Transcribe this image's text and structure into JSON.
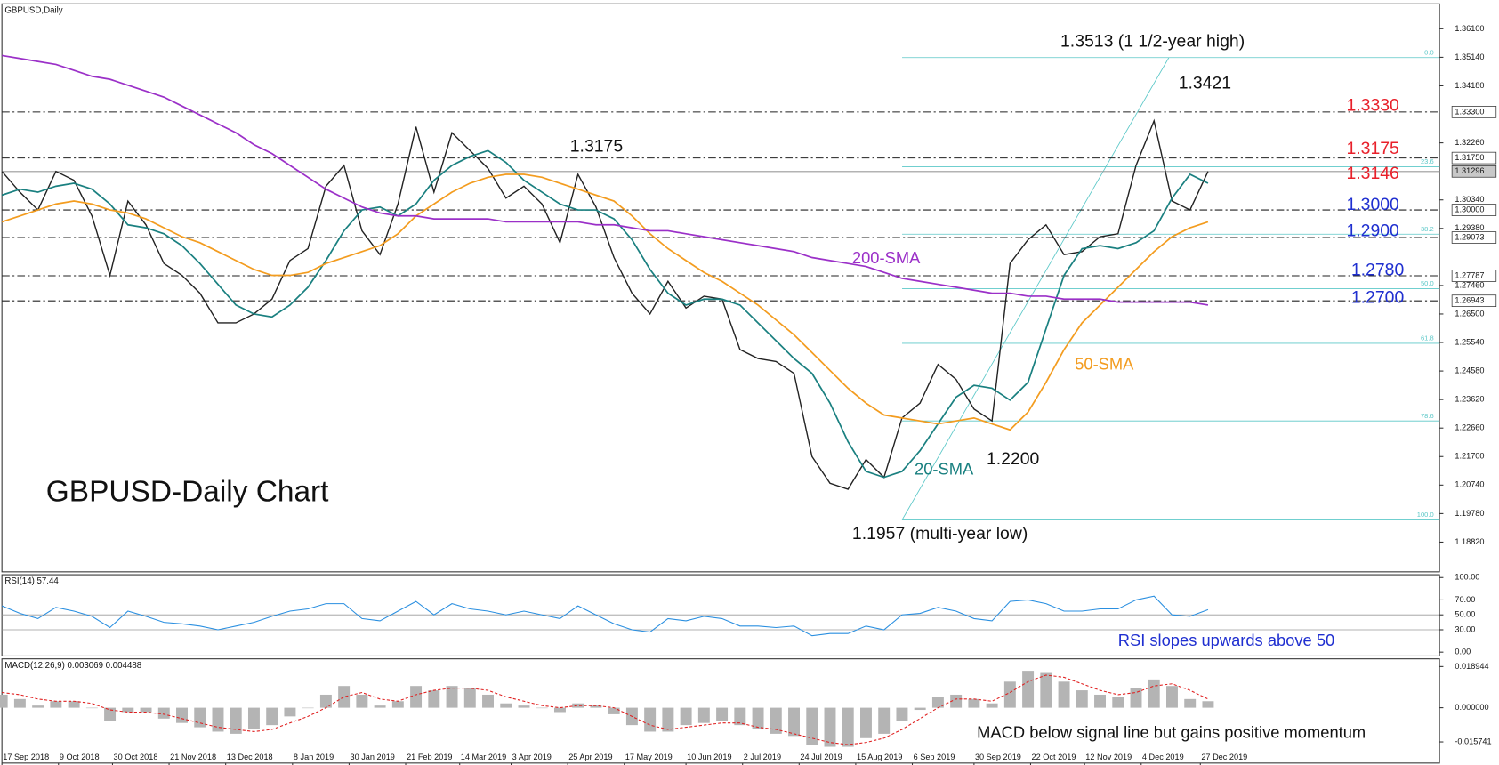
{
  "chart_data": [
    {
      "type": "line",
      "title": "GBPUSD,Daily",
      "subtitle": "GBPUSD-Daily Chart",
      "x": [
        "17 Sep 2018",
        "24 Sep 2018",
        "1 Oct 2018",
        "8 Oct 2018",
        "15 Oct 2018",
        "22 Oct 2018",
        "29 Oct 2018",
        "5 Nov 2018",
        "12 Nov 2018",
        "19 Nov 2018",
        "26 Nov 2018",
        "3 Dec 2018",
        "10 Dec 2018",
        "17 Dec 2018",
        "24 Dec 2018",
        "31 Dec 2018",
        "7 Jan 2019",
        "14 Jan 2019",
        "21 Jan 2019",
        "28 Jan 2019",
        "4 Feb 2019",
        "11 Feb 2019",
        "18 Feb 2019",
        "25 Feb 2019",
        "4 Mar 2019",
        "11 Mar 2019",
        "18 Mar 2019",
        "25 Mar 2019",
        "1 Apr 2019",
        "8 Apr 2019",
        "15 Apr 2019",
        "22 Apr 2019",
        "29 Apr 2019",
        "6 May 2019",
        "13 May 2019",
        "20 May 2019",
        "27 May 2019",
        "3 Jun 2019",
        "10 Jun 2019",
        "17 Jun 2019",
        "24 Jun 2019",
        "1 Jul 2019",
        "8 Jul 2019",
        "15 Jul 2019",
        "22 Jul 2019",
        "29 Jul 2019",
        "5 Aug 2019",
        "12 Aug 2019",
        "19 Aug 2019",
        "26 Aug 2019",
        "2 Sep 2019",
        "9 Sep 2019",
        "16 Sep 2019",
        "23 Sep 2019",
        "30 Sep 2019",
        "7 Oct 2019",
        "14 Oct 2019",
        "21 Oct 2019",
        "28 Oct 2019",
        "4 Nov 2019",
        "11 Nov 2019",
        "18 Nov 2019",
        "25 Nov 2019",
        "2 Dec 2019",
        "9 Dec 2019",
        "16 Dec 2019",
        "23 Dec 2019",
        "30 Dec 2019"
      ],
      "xlim": [
        "17 Sep 2018",
        "29 Mar 2020"
      ],
      "xticks": [
        "17 Sep 2018",
        "9 Oct 2018",
        "30 Oct 2018",
        "21 Nov 2018",
        "13 Dec 2018",
        "8 Jan 2019",
        "30 Jan 2019",
        "21 Feb 2019",
        "14 Mar 2019",
        "3 Apr 2019",
        "25 Apr 2019",
        "17 May 2019",
        "10 Jun 2019",
        "2 Jul 2019",
        "24 Jul 2019",
        "15 Aug 2019",
        "6 Sep 2019",
        "30 Sep 2019",
        "22 Oct 2019",
        "12 Nov 2019",
        "4 Dec 2019",
        "27 Dec 2019"
      ],
      "ylim": [
        1.1782,
        1.3694
      ],
      "yticks": [
        {
          "value": 1.361,
          "label": "1.36100"
        },
        {
          "value": 1.3514,
          "label": "1.35140"
        },
        {
          "value": 1.3418,
          "label": "1.34180"
        },
        {
          "value": 1.3226,
          "label": "1.32260"
        },
        {
          "value": 1.3034,
          "label": "1.30340"
        },
        {
          "value": 1.2938,
          "label": "1.29380"
        },
        {
          "value": 1.2746,
          "label": "1.27460"
        },
        {
          "value": 1.265,
          "label": "1.26500"
        },
        {
          "value": 1.2554,
          "label": "1.25540"
        },
        {
          "value": 1.2458,
          "label": "1.24580"
        },
        {
          "value": 1.2362,
          "label": "1.23620"
        },
        {
          "value": 1.2266,
          "label": "1.22660"
        },
        {
          "value": 1.217,
          "label": "1.21700"
        },
        {
          "value": 1.2074,
          "label": "1.20740"
        },
        {
          "value": 1.1978,
          "label": "1.19780"
        },
        {
          "value": 1.1882,
          "label": "1.18820"
        }
      ],
      "grid": false,
      "levels": [
        {
          "value": 1.333,
          "label": "1.33300",
          "style": "dash-dot"
        },
        {
          "value": 1.3175,
          "label": "1.31750",
          "style": "dash-dot"
        },
        {
          "value": 1.31296,
          "label": "1.31296",
          "style": "solid"
        },
        {
          "value": 1.3,
          "label": "1.30000",
          "style": "dash-dot"
        },
        {
          "value": 1.29073,
          "label": "1.29073",
          "style": "dash-dot"
        },
        {
          "value": 1.27787,
          "label": "1.27787",
          "style": "dash-dot"
        },
        {
          "value": 1.26943,
          "label": "1.26943",
          "style": "dash-dot"
        }
      ],
      "fibonacci": {
        "high": 1.3513,
        "low": 1.1957,
        "color": "#5cc8c8",
        "levels": [
          {
            "value": 0,
            "label": "0.0"
          },
          {
            "value": 23.6,
            "label": "23.6"
          },
          {
            "value": 38.2,
            "label": "38.2"
          },
          {
            "value": 50,
            "label": "50.0"
          },
          {
            "value": 61.8,
            "label": "61.8"
          },
          {
            "value": 78.6,
            "label": "78.6"
          },
          {
            "value": 100,
            "label": "100.0"
          }
        ]
      },
      "series": [
        {
          "color": "#222222",
          "values": [
            1.313,
            1.306,
            1.3,
            1.313,
            1.31,
            1.298,
            1.278,
            1.303,
            1.295,
            1.282,
            1.278,
            1.272,
            1.262,
            1.262,
            1.265,
            1.27,
            1.283,
            1.287,
            1.308,
            1.315,
            1.293,
            1.285,
            1.302,
            1.328,
            1.306,
            1.326,
            1.32,
            1.314,
            1.304,
            1.308,
            1.302,
            1.289,
            1.312,
            1.301,
            1.284,
            1.272,
            1.265,
            1.276,
            1.267,
            1.271,
            1.27,
            1.253,
            1.25,
            1.249,
            1.245,
            1.217,
            1.208,
            1.206,
            1.216,
            1.21,
            1.23,
            1.235,
            1.248,
            1.243,
            1.233,
            1.229,
            1.282,
            1.29,
            1.295,
            1.285,
            1.286,
            1.291,
            1.292,
            1.315,
            1.33,
            1.303,
            1.3,
            1.313
          ]
        },
        {
          "name": "20-SMA",
          "color": "#1a8080",
          "values": [
            1.305,
            1.307,
            1.306,
            1.308,
            1.309,
            1.307,
            1.302,
            1.295,
            1.294,
            1.292,
            1.288,
            1.282,
            1.275,
            1.268,
            1.265,
            1.264,
            1.268,
            1.274,
            1.283,
            1.293,
            1.3,
            1.301,
            1.298,
            1.302,
            1.31,
            1.315,
            1.318,
            1.32,
            1.316,
            1.31,
            1.306,
            1.302,
            1.3,
            1.3,
            1.297,
            1.29,
            1.28,
            1.272,
            1.268,
            1.27,
            1.27,
            1.268,
            1.262,
            1.256,
            1.25,
            1.245,
            1.235,
            1.222,
            1.212,
            1.21,
            1.212,
            1.219,
            1.228,
            1.237,
            1.241,
            1.24,
            1.236,
            1.242,
            1.26,
            1.278,
            1.287,
            1.288,
            1.287,
            1.289,
            1.293,
            1.304,
            1.312,
            1.309
          ]
        },
        {
          "name": "50-SMA",
          "color": "#f39c1f",
          "values": [
            1.296,
            1.298,
            1.3,
            1.302,
            1.303,
            1.302,
            1.3,
            1.299,
            1.297,
            1.294,
            1.291,
            1.289,
            1.286,
            1.283,
            1.28,
            1.278,
            1.278,
            1.279,
            1.282,
            1.284,
            1.286,
            1.288,
            1.292,
            1.298,
            1.302,
            1.306,
            1.309,
            1.311,
            1.312,
            1.312,
            1.311,
            1.309,
            1.307,
            1.305,
            1.303,
            1.298,
            1.292,
            1.287,
            1.283,
            1.279,
            1.276,
            1.272,
            1.268,
            1.263,
            1.258,
            1.252,
            1.246,
            1.24,
            1.235,
            1.231,
            1.23,
            1.229,
            1.228,
            1.229,
            1.23,
            1.228,
            1.226,
            1.232,
            1.242,
            1.253,
            1.262,
            1.268,
            1.274,
            1.28,
            1.286,
            1.291,
            1.294,
            1.296
          ]
        },
        {
          "name": "200-SMA",
          "color": "#9b30c8",
          "values": [
            1.352,
            1.351,
            1.35,
            1.349,
            1.347,
            1.345,
            1.344,
            1.342,
            1.34,
            1.338,
            1.335,
            1.332,
            1.329,
            1.326,
            1.322,
            1.319,
            1.315,
            1.311,
            1.307,
            1.304,
            1.301,
            1.299,
            1.298,
            1.298,
            1.297,
            1.297,
            1.297,
            1.297,
            1.296,
            1.296,
            1.296,
            1.296,
            1.296,
            1.295,
            1.295,
            1.294,
            1.293,
            1.293,
            1.292,
            1.291,
            1.29,
            1.289,
            1.288,
            1.287,
            1.286,
            1.284,
            1.283,
            1.282,
            1.281,
            1.279,
            1.277,
            1.276,
            1.275,
            1.274,
            1.273,
            1.272,
            1.272,
            1.271,
            1.271,
            1.27,
            1.27,
            1.27,
            1.269,
            1.269,
            1.269,
            1.269,
            1.269,
            1.268
          ]
        }
      ],
      "annotations": [
        {
          "text": "1.3513 (1 1/2-year high)",
          "color": "#111111"
        },
        {
          "text": "1.3421",
          "color": "#111111"
        },
        {
          "text": "1.3175",
          "color": "#111111"
        },
        {
          "text": "1.3330",
          "color": "#e8202a"
        },
        {
          "text": "1.3175",
          "color": "#e8202a"
        },
        {
          "text": "1.3146",
          "color": "#e8202a"
        },
        {
          "text": "1.3000",
          "color": "#1f2fd0"
        },
        {
          "text": "1.2900",
          "color": "#1f2fd0"
        },
        {
          "text": "1.2780",
          "color": "#1f2fd0"
        },
        {
          "text": "1.2700",
          "color": "#1f2fd0"
        },
        {
          "text": "1.2200",
          "color": "#111111"
        },
        {
          "text": "1.1957 (multi-year low)",
          "color": "#111111"
        }
      ]
    },
    {
      "type": "line",
      "title": "RSI(14) 57.44",
      "color": "#2a8fe0",
      "values": [
        62,
        52,
        45,
        60,
        55,
        48,
        33,
        55,
        48,
        40,
        38,
        35,
        30,
        35,
        40,
        48,
        55,
        58,
        65,
        65,
        45,
        42,
        55,
        68,
        50,
        65,
        58,
        55,
        50,
        55,
        50,
        45,
        62,
        50,
        38,
        30,
        27,
        45,
        42,
        48,
        45,
        35,
        35,
        33,
        35,
        22,
        25,
        25,
        35,
        30,
        50,
        52,
        60,
        55,
        45,
        42,
        68,
        70,
        65,
        55,
        55,
        58,
        58,
        70,
        75,
        50,
        48,
        57
      ],
      "ylim": [
        -5.1,
        103.8
      ],
      "yticks": [
        {
          "value": 100,
          "label": "100.00"
        },
        {
          "value": 70,
          "label": "70.00"
        },
        {
          "value": 50,
          "label": "50.00"
        },
        {
          "value": 30,
          "label": "30.00"
        },
        {
          "value": 0,
          "label": "0.00"
        }
      ],
      "levels": [
        70,
        50,
        30
      ],
      "annotations": [
        {
          "text": "RSI slopes upwards above 50",
          "color": "#1f2fd0"
        }
      ]
    },
    {
      "type": "bar",
      "title": "MACD(12,26,9) 0.003069 0.004488",
      "ylim": [
        -0.0255,
        0.0225
      ],
      "yticks": [
        0.018944,
        {
          "value": 0,
          "label": "0.000000"
        },
        -0.015741
      ],
      "series": [
        {
          "color": "#b4b4b4",
          "values": [
            0.006,
            0.004,
            0.001,
            0.003,
            0.003,
            0.0,
            -0.006,
            -0.002,
            -0.002,
            -0.005,
            -0.007,
            -0.009,
            -0.011,
            -0.012,
            -0.01,
            -0.008,
            -0.004,
            0.0,
            0.006,
            0.01,
            0.006,
            0.001,
            0.003,
            0.01,
            0.008,
            0.01,
            0.009,
            0.006,
            0.002,
            0.001,
            0.0,
            -0.002,
            0.002,
            0.001,
            -0.003,
            -0.008,
            -0.011,
            -0.011,
            -0.008,
            -0.007,
            -0.006,
            -0.008,
            -0.01,
            -0.012,
            -0.013,
            -0.017,
            -0.018,
            -0.018,
            -0.014,
            -0.012,
            -0.006,
            -0.001,
            0.005,
            0.006,
            0.004,
            0.002,
            0.012,
            0.017,
            0.016,
            0.012,
            0.008,
            0.006,
            0.005,
            0.009,
            0.013,
            0.01,
            0.004,
            0.003
          ]
        },
        {
          "color": "#e02020",
          "line_style": "dotted",
          "values": [
            0.007,
            0.006,
            0.004,
            0.003,
            0.003,
            0.002,
            -0.001,
            -0.002,
            -0.002,
            -0.003,
            -0.005,
            -0.007,
            -0.009,
            -0.01,
            -0.011,
            -0.01,
            -0.007,
            -0.004,
            0.0,
            0.005,
            0.007,
            0.004,
            0.003,
            0.006,
            0.008,
            0.009,
            0.009,
            0.008,
            0.005,
            0.003,
            0.001,
            0.0,
            0.001,
            0.001,
            0.0,
            -0.004,
            -0.008,
            -0.01,
            -0.009,
            -0.008,
            -0.007,
            -0.007,
            -0.009,
            -0.01,
            -0.012,
            -0.014,
            -0.016,
            -0.017,
            -0.016,
            -0.014,
            -0.01,
            -0.005,
            0.0,
            0.004,
            0.004,
            0.003,
            0.007,
            0.012,
            0.015,
            0.014,
            0.011,
            0.008,
            0.006,
            0.007,
            0.01,
            0.011,
            0.008,
            0.004
          ]
        }
      ],
      "annotations": [
        {
          "text": "MACD below signal line but gains positive momentum",
          "color": "#111111"
        }
      ]
    }
  ]
}
